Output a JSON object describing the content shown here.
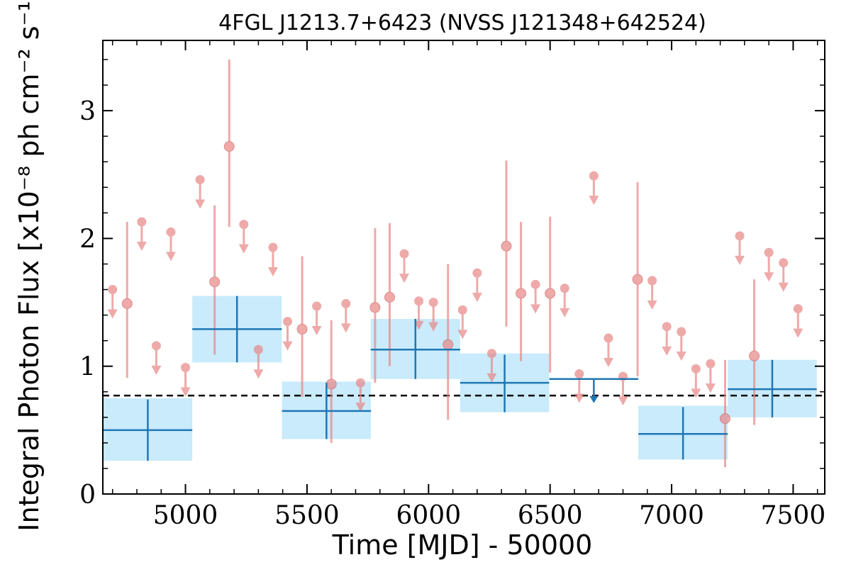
{
  "chart_data": {
    "type": "scatter",
    "title": "4FGL J1213.7+6423 (NVSS J121348+642524)",
    "xlabel": "Time [MJD] - 50000",
    "ylabel": "Integral Photon Flux [x10⁻⁸ ph cm⁻² s⁻¹]",
    "xlim": [
      4660,
      7630
    ],
    "ylim": [
      0,
      3.55
    ],
    "xticks": [
      5000,
      5500,
      6000,
      6500,
      7000,
      7500
    ],
    "xtick_labels": [
      "5000",
      "5500",
      "6000",
      "6500",
      "7000",
      "7500"
    ],
    "yticks": [
      0,
      1,
      2,
      3
    ],
    "ytick_labels": [
      "0",
      "1",
      "2",
      "3"
    ],
    "grid": false,
    "legend": "none",
    "reference_line": {
      "y": 0.77,
      "style": "dashed",
      "color": "#000000"
    },
    "colors": {
      "fine_bins": "#e88585",
      "coarse_bins": "#1f77b4",
      "coarse_band": "#c9ebfb"
    },
    "series": [
      {
        "binning": "fine",
        "points": [
          {
            "x": 4700,
            "y": 1.6,
            "ul": true
          },
          {
            "x": 4760,
            "y": 1.49,
            "lo": 0.91,
            "hi": 2.13
          },
          {
            "x": 4820,
            "y": 2.13,
            "ul": true
          },
          {
            "x": 4880,
            "y": 1.16,
            "ul": true
          },
          {
            "x": 4940,
            "y": 2.05,
            "ul": true
          },
          {
            "x": 5000,
            "y": 0.99,
            "ul": true
          },
          {
            "x": 5060,
            "y": 2.46,
            "ul": true
          },
          {
            "x": 5120,
            "y": 1.66,
            "lo": 1.09,
            "hi": 2.26
          },
          {
            "x": 5180,
            "y": 2.72,
            "lo": 2.09,
            "hi": 3.4
          },
          {
            "x": 5240,
            "y": 2.11,
            "ul": true
          },
          {
            "x": 5300,
            "y": 1.13,
            "ul": true
          },
          {
            "x": 5360,
            "y": 1.93,
            "ul": true
          },
          {
            "x": 5420,
            "y": 1.35,
            "ul": true
          },
          {
            "x": 5480,
            "y": 1.29,
            "lo": 0.76,
            "hi": 1.86
          },
          {
            "x": 5540,
            "y": 1.47,
            "ul": true
          },
          {
            "x": 5600,
            "y": 0.86,
            "lo": 0.4,
            "hi": 1.36
          },
          {
            "x": 5660,
            "y": 1.49,
            "ul": true
          },
          {
            "x": 5720,
            "y": 0.87,
            "ul": true
          },
          {
            "x": 5780,
            "y": 1.46,
            "lo": 0.87,
            "hi": 2.08
          },
          {
            "x": 5840,
            "y": 1.54,
            "lo": 1.0,
            "hi": 2.12
          },
          {
            "x": 5900,
            "y": 1.88,
            "ul": true
          },
          {
            "x": 5960,
            "y": 1.51,
            "ul": true
          },
          {
            "x": 6020,
            "y": 1.5,
            "ul": true
          },
          {
            "x": 6080,
            "y": 1.17,
            "lo": 0.58,
            "hi": 1.8
          },
          {
            "x": 6140,
            "y": 1.44,
            "ul": true
          },
          {
            "x": 6200,
            "y": 1.73,
            "ul": true
          },
          {
            "x": 6260,
            "y": 1.1,
            "ul": true
          },
          {
            "x": 6320,
            "y": 1.94,
            "lo": 1.31,
            "hi": 2.61
          },
          {
            "x": 6380,
            "y": 1.57,
            "lo": 1.04,
            "hi": 2.13
          },
          {
            "x": 6440,
            "y": 1.64,
            "ul": true
          },
          {
            "x": 6500,
            "y": 1.57,
            "lo": 0.95,
            "hi": 2.17
          },
          {
            "x": 6560,
            "y": 1.61,
            "ul": true
          },
          {
            "x": 6620,
            "y": 0.94,
            "ul": true
          },
          {
            "x": 6680,
            "y": 2.49,
            "ul": true
          },
          {
            "x": 6740,
            "y": 1.22,
            "ul": true
          },
          {
            "x": 6800,
            "y": 0.92,
            "ul": true
          },
          {
            "x": 6860,
            "y": 1.68,
            "lo": 0.92,
            "hi": 2.44
          },
          {
            "x": 6920,
            "y": 1.67,
            "ul": true
          },
          {
            "x": 6980,
            "y": 1.31,
            "ul": true
          },
          {
            "x": 7040,
            "y": 1.27,
            "ul": true
          },
          {
            "x": 7100,
            "y": 0.98,
            "ul": true
          },
          {
            "x": 7160,
            "y": 1.02,
            "ul": true
          },
          {
            "x": 7220,
            "y": 0.59,
            "lo": 0.21,
            "hi": 1.05
          },
          {
            "x": 7280,
            "y": 2.02,
            "ul": true
          },
          {
            "x": 7340,
            "y": 1.08,
            "lo": 0.54,
            "hi": 1.68
          },
          {
            "x": 7400,
            "y": 1.89,
            "ul": true
          },
          {
            "x": 7460,
            "y": 1.81,
            "ul": true
          },
          {
            "x": 7520,
            "y": 1.45,
            "ul": true
          }
        ]
      },
      {
        "binning": "coarse",
        "points": [
          {
            "x": 4845,
            "xerr": 183,
            "y": 0.5,
            "lo": 0.26,
            "hi": 0.74,
            "band": [
              0.26,
              0.75
            ]
          },
          {
            "x": 5212,
            "xerr": 184,
            "y": 1.29,
            "lo": 1.03,
            "hi": 1.55,
            "band": [
              1.03,
              1.55
            ]
          },
          {
            "x": 5580,
            "xerr": 183,
            "y": 0.65,
            "lo": 0.43,
            "hi": 0.87,
            "band": [
              0.43,
              0.88
            ]
          },
          {
            "x": 5946,
            "xerr": 184,
            "y": 1.13,
            "lo": 0.9,
            "hi": 1.37,
            "band": [
              0.9,
              1.37
            ]
          },
          {
            "x": 6313,
            "xerr": 183,
            "y": 0.87,
            "lo": 0.64,
            "hi": 1.09,
            "band": [
              0.64,
              1.1
            ]
          },
          {
            "x": 6680,
            "xerr": 183,
            "y": 0.9,
            "ul": true
          },
          {
            "x": 7047,
            "xerr": 184,
            "y": 0.47,
            "lo": 0.27,
            "hi": 0.68,
            "band": [
              0.27,
              0.69
            ]
          },
          {
            "x": 7414,
            "xerr": 183,
            "y": 0.82,
            "lo": 0.6,
            "hi": 1.05,
            "band": [
              0.6,
              1.05
            ]
          }
        ]
      }
    ]
  }
}
